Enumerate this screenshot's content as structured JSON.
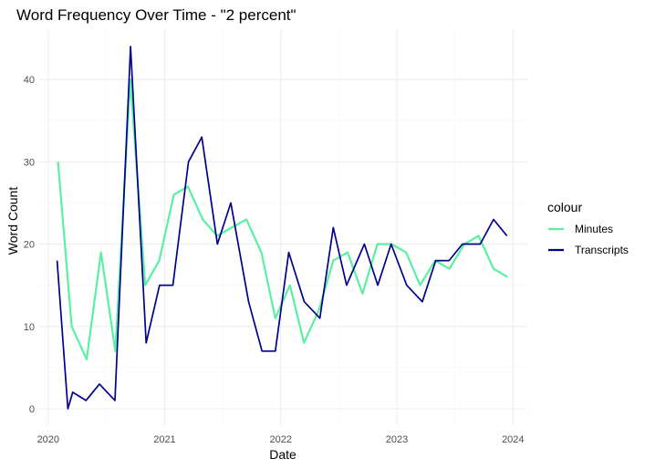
{
  "chart_data": {
    "type": "line",
    "title": "Word Frequency Over Time - \"2 percent\"",
    "xlabel": "Date",
    "ylabel": "Word Count",
    "x_ticks": [
      "2020",
      "2021",
      "2022",
      "2023",
      "2024"
    ],
    "y_ticks": [
      0,
      10,
      20,
      30,
      40
    ],
    "xlim": [
      "2019-12-01",
      "2024-02-15"
    ],
    "ylim": [
      -2,
      46
    ],
    "grid": true,
    "legend": {
      "title": "colour",
      "placement": "right",
      "entries": [
        "Minutes",
        "Transcripts"
      ]
    },
    "series": [
      {
        "name": "Minutes",
        "color": "#5af0a0",
        "points": [
          [
            "2020-02-01",
            30
          ],
          [
            "2020-03-15",
            10
          ],
          [
            "2020-05-01",
            6
          ],
          [
            "2020-06-15",
            19
          ],
          [
            "2020-07-30",
            7
          ],
          [
            "2020-09-15",
            40
          ],
          [
            "2020-11-01",
            15
          ],
          [
            "2020-12-15",
            18
          ],
          [
            "2021-01-30",
            26
          ],
          [
            "2021-03-15",
            27
          ],
          [
            "2021-05-01",
            23
          ],
          [
            "2021-06-15",
            21
          ],
          [
            "2021-07-30",
            22
          ],
          [
            "2021-09-15",
            23
          ],
          [
            "2021-11-01",
            19
          ],
          [
            "2021-12-15",
            11
          ],
          [
            "2022-01-30",
            15
          ],
          [
            "2022-03-15",
            8
          ],
          [
            "2022-05-01",
            12
          ],
          [
            "2022-06-15",
            18
          ],
          [
            "2022-07-30",
            19
          ],
          [
            "2022-09-15",
            14
          ],
          [
            "2022-11-01",
            20
          ],
          [
            "2022-12-15",
            20
          ],
          [
            "2023-01-30",
            19
          ],
          [
            "2023-03-15",
            15
          ],
          [
            "2023-05-01",
            18
          ],
          [
            "2023-06-15",
            17
          ],
          [
            "2023-08-01",
            20
          ],
          [
            "2023-09-15",
            21
          ],
          [
            "2023-11-01",
            17
          ],
          [
            "2023-12-15",
            16
          ]
        ]
      },
      {
        "name": "Transcripts",
        "color": "#00008b",
        "points": [
          [
            "2020-01-29",
            18
          ],
          [
            "2020-03-03",
            0
          ],
          [
            "2020-03-18",
            2
          ],
          [
            "2020-04-29",
            1
          ],
          [
            "2020-06-10",
            3
          ],
          [
            "2020-07-29",
            1
          ],
          [
            "2020-09-16",
            44
          ],
          [
            "2020-11-04",
            8
          ],
          [
            "2020-12-16",
            15
          ],
          [
            "2021-01-27",
            15
          ],
          [
            "2021-03-17",
            30
          ],
          [
            "2021-04-28",
            33
          ],
          [
            "2021-06-16",
            20
          ],
          [
            "2021-07-28",
            25
          ],
          [
            "2021-09-22",
            13
          ],
          [
            "2021-11-03",
            7
          ],
          [
            "2021-12-15",
            7
          ],
          [
            "2022-01-26",
            19
          ],
          [
            "2022-03-16",
            13
          ],
          [
            "2022-05-04",
            11
          ],
          [
            "2022-06-15",
            22
          ],
          [
            "2022-07-27",
            15
          ],
          [
            "2022-09-21",
            20
          ],
          [
            "2022-11-02",
            15
          ],
          [
            "2022-12-14",
            20
          ],
          [
            "2023-02-01",
            15
          ],
          [
            "2023-03-22",
            13
          ],
          [
            "2023-05-03",
            18
          ],
          [
            "2023-06-14",
            18
          ],
          [
            "2023-07-26",
            20
          ],
          [
            "2023-09-20",
            20
          ],
          [
            "2023-11-01",
            23
          ],
          [
            "2023-12-13",
            21
          ]
        ]
      }
    ]
  }
}
